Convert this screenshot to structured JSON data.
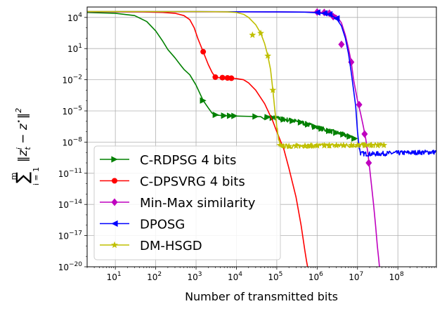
{
  "chart_data": {
    "type": "line",
    "xscale": "log",
    "yscale": "log",
    "xlim": [
      2,
      900000000
    ],
    "ylim": [
      1e-20,
      100000.0
    ],
    "xlabel": "Number of transmitted bits",
    "ylabel": "Σ_{i=1}^{m} ‖z_t^i − z*‖²",
    "ylabel_parts": {
      "sum": "∑",
      "lower": "i = 1",
      "upper": "m",
      "body": "‖z",
      "sub": "t",
      "sup": "i",
      "rest": " − z",
      "star": "⋆",
      "close": "‖",
      "pow": "2"
    },
    "grid": true,
    "legend_position": "lower-left",
    "xticks": [
      {
        "value": 10,
        "base": "10",
        "exp": "1"
      },
      {
        "value": 100,
        "base": "10",
        "exp": "2"
      },
      {
        "value": 1000,
        "base": "10",
        "exp": "3"
      },
      {
        "value": 10000,
        "base": "10",
        "exp": "4"
      },
      {
        "value": 100000,
        "base": "10",
        "exp": "5"
      },
      {
        "value": 1000000,
        "base": "10",
        "exp": "6"
      },
      {
        "value": 10000000,
        "base": "10",
        "exp": "7"
      },
      {
        "value": 100000000,
        "base": "10",
        "exp": "8"
      }
    ],
    "yticks": [
      {
        "value": 10000.0,
        "base": "10",
        "exp": "4"
      },
      {
        "value": 10.0,
        "base": "10",
        "exp": "1"
      },
      {
        "value": 0.01,
        "base": "10",
        "exp": "−2"
      },
      {
        "value": 1e-05,
        "base": "10",
        "exp": "−5"
      },
      {
        "value": 1e-08,
        "base": "10",
        "exp": "−8"
      },
      {
        "value": 1e-11,
        "base": "10",
        "exp": "−11"
      },
      {
        "value": 1e-14,
        "base": "10",
        "exp": "−14"
      },
      {
        "value": 1e-17,
        "base": "10",
        "exp": "−17"
      },
      {
        "value": 1e-20,
        "base": "10",
        "exp": "−20"
      }
    ],
    "series": [
      {
        "name": "C-RDPSG 4 bits",
        "color": "#008000",
        "marker": "triangle-right",
        "noise_from": 50000,
        "points": [
          [
            2,
            30000.0
          ],
          [
            10,
            25000.0
          ],
          [
            30,
            15000.0
          ],
          [
            60,
            4000.0
          ],
          [
            100,
            500.0
          ],
          [
            150,
            50.0
          ],
          [
            200,
            8
          ],
          [
            300,
            1.3
          ],
          [
            400,
            0.3
          ],
          [
            500,
            0.1
          ],
          [
            700,
            0.03
          ],
          [
            1000,
            0.003
          ],
          [
            1500,
            0.0001
          ],
          [
            2000,
            2e-05
          ],
          [
            2500,
            6e-06
          ],
          [
            3000,
            4e-06
          ],
          [
            5000,
            3.5e-06
          ],
          [
            10000,
            3.2e-06
          ],
          [
            20000,
            3e-06
          ],
          [
            40000,
            2.8e-06
          ],
          [
            60000,
            2.5e-06
          ],
          [
            100000,
            2e-06
          ],
          [
            200000,
            1.3e-06
          ],
          [
            400000,
            8e-07
          ],
          [
            700000,
            4e-07
          ],
          [
            1000000,
            2.5e-07
          ],
          [
            2000000,
            1.2e-07
          ],
          [
            4000000,
            6e-08
          ],
          [
            7000000,
            3e-08
          ],
          [
            9000000,
            2e-08
          ]
        ],
        "markers": [
          [
            1500,
            0.0001
          ],
          [
            3100,
            4.2e-06
          ],
          [
            5000,
            3.5e-06
          ],
          [
            7000,
            3.4e-06
          ],
          [
            9000,
            3.3e-06
          ],
          [
            30000,
            2.9e-06
          ],
          [
            60000,
            2.5e-06
          ],
          [
            80000,
            2.2e-06
          ],
          [
            150000,
            1.5e-06
          ],
          [
            250000,
            1.1e-06
          ],
          [
            400000,
            8e-07
          ],
          [
            600000,
            5e-07
          ],
          [
            900000,
            3e-07
          ],
          [
            1300000,
            2e-07
          ],
          [
            2000000,
            1.2e-07
          ],
          [
            3000000,
            8e-08
          ],
          [
            4500000,
            5.5e-08
          ],
          [
            6500000,
            3.5e-08
          ],
          [
            8500000,
            2.2e-08
          ]
        ]
      },
      {
        "name": "C-DPSVRG 4 bits",
        "color": "#ff0000",
        "marker": "circle",
        "points": [
          [
            2,
            35000.0
          ],
          [
            50,
            33000.0
          ],
          [
            150,
            30000.0
          ],
          [
            300,
            25000.0
          ],
          [
            500,
            15000.0
          ],
          [
            700,
            6000.0
          ],
          [
            900,
            1000.0
          ],
          [
            1100,
            100.0
          ],
          [
            1300,
            20.0
          ],
          [
            1500,
            5
          ],
          [
            2000,
            0.3
          ],
          [
            2500,
            0.05
          ],
          [
            3000,
            0.018
          ],
          [
            4000,
            0.015
          ],
          [
            6000,
            0.015
          ],
          [
            8000,
            0.014
          ],
          [
            10000,
            0.013
          ],
          [
            15000,
            0.01
          ],
          [
            20000,
            0.005
          ],
          [
            30000,
            0.001
          ],
          [
            50000,
            5e-05
          ],
          [
            80000,
            1e-06
          ],
          [
            100000,
            1e-07
          ],
          [
            150000,
            2e-09
          ],
          [
            200000,
            3e-11
          ],
          [
            300000,
            5e-14
          ],
          [
            400000,
            1e-16
          ],
          [
            500000,
            3e-19
          ],
          [
            550000,
            3e-20
          ],
          [
            580000,
            1e-20
          ]
        ],
        "markers": [
          [
            1500,
            5
          ],
          [
            3000,
            0.018
          ],
          [
            4500,
            0.016
          ],
          [
            6000,
            0.015
          ],
          [
            7500,
            0.014
          ]
        ]
      },
      {
        "name": "Min-Max similarity",
        "color": "#bf00bf",
        "marker": "diamond",
        "points": [
          [
            2,
            35000.0
          ],
          [
            100000,
            34000.0
          ],
          [
            1000000,
            32000.0
          ],
          [
            2000000,
            28000.0
          ],
          [
            3000000,
            15000.0
          ],
          [
            4000000,
            3000.0
          ],
          [
            5000000,
            200.0
          ],
          [
            6000000,
            10.0
          ],
          [
            7000000,
            0.5
          ],
          [
            8000000,
            0.01
          ],
          [
            10000000,
            0.0001
          ],
          [
            12000000,
            5e-06
          ],
          [
            14000000,
            3e-07
          ],
          [
            16000000,
            2e-08
          ],
          [
            18000000,
            1e-09
          ],
          [
            20000000,
            3e-11
          ],
          [
            22000000,
            1e-12
          ],
          [
            25000000,
            1e-14
          ],
          [
            28000000,
            1e-16
          ],
          [
            31000000,
            1e-18
          ],
          [
            33000000,
            1e-19
          ],
          [
            35000000,
            1e-20
          ]
        ],
        "markers": [
          [
            1000000,
            33000.0
          ],
          [
            1500000,
            30000.0
          ],
          [
            2000000,
            25000.0
          ],
          [
            2500000,
            12000.0
          ],
          [
            4000000,
            25.0
          ],
          [
            7000000,
            0.5
          ],
          [
            11000000,
            4e-05
          ],
          [
            15000000,
            6e-08
          ],
          [
            19000000,
            1e-10
          ]
        ]
      },
      {
        "name": "DPOSG",
        "color": "#0000ff",
        "marker": "triangle-left",
        "noise_from": 11000000,
        "points": [
          [
            2,
            36000.0
          ],
          [
            1000,
            36000.0
          ],
          [
            10000,
            35000.0
          ],
          [
            100000,
            34000.0
          ],
          [
            500000,
            32000.0
          ],
          [
            1000000,
            28000.0
          ],
          [
            2000000,
            20000.0
          ],
          [
            3000000,
            8000.0
          ],
          [
            4000000,
            1500.0
          ],
          [
            5000000,
            100.0
          ],
          [
            6000000,
            3
          ],
          [
            7000000,
            0.05
          ],
          [
            8000000,
            0.001
          ],
          [
            9000000,
            3e-05
          ],
          [
            10000000,
            1e-07
          ],
          [
            11000000,
            3e-09
          ],
          [
            12000000,
            8e-10
          ],
          [
            20000000,
            7e-10
          ],
          [
            50000000,
            8e-10
          ],
          [
            100000000,
            9e-10
          ],
          [
            300000000,
            1e-09
          ],
          [
            900000000,
            1.1e-09
          ]
        ],
        "markers": [
          [
            1000000,
            30000.0
          ],
          [
            1500000,
            25000.0
          ],
          [
            2000000,
            20000.0
          ],
          [
            3000000,
            8000.0
          ]
        ]
      },
      {
        "name": "DM-HSGD",
        "color": "#bfbf00",
        "marker": "star",
        "noise_from": 100000,
        "points": [
          [
            2,
            37000.0
          ],
          [
            100,
            36000.0
          ],
          [
            1000,
            36000.0
          ],
          [
            3000,
            35000.0
          ],
          [
            6000,
            34000.0
          ],
          [
            10000,
            30000.0
          ],
          [
            15000,
            20000.0
          ],
          [
            20000,
            10000.0
          ],
          [
            30000,
            2000.0
          ],
          [
            40000,
            300.0
          ],
          [
            50000,
            30.0
          ],
          [
            60000,
            2
          ],
          [
            70000,
            0.1
          ],
          [
            80000,
            0.001
          ],
          [
            90000,
            1e-05
          ],
          [
            100000,
            3e-07
          ],
          [
            110000,
            2e-08
          ],
          [
            120000,
            5e-09
          ],
          [
            150000,
            4e-09
          ],
          [
            1000000,
            4.5e-09
          ],
          [
            10000000,
            5e-09
          ],
          [
            48000000,
            5e-09
          ]
        ],
        "markers": [
          [
            25000,
            200.0
          ],
          [
            40000,
            300.0
          ],
          [
            60000,
            2
          ],
          [
            80000,
            0.001
          ],
          [
            120000,
            5e-09
          ],
          [
            200000,
            4e-09
          ],
          [
            300000,
            4.2e-09
          ],
          [
            500000,
            4.3e-09
          ],
          [
            700000,
            4.4e-09
          ],
          [
            1000000,
            4.5e-09
          ],
          [
            1500000,
            4.6e-09
          ],
          [
            2000000,
            4.7e-09
          ],
          [
            3000000,
            4.8e-09
          ],
          [
            4500000,
            4.8e-09
          ],
          [
            7000000,
            5e-09
          ],
          [
            10000000,
            5e-09
          ],
          [
            15000000,
            5e-09
          ],
          [
            22000000,
            5e-09
          ],
          [
            32000000,
            5e-09
          ],
          [
            45000000,
            5e-09
          ]
        ]
      }
    ]
  }
}
